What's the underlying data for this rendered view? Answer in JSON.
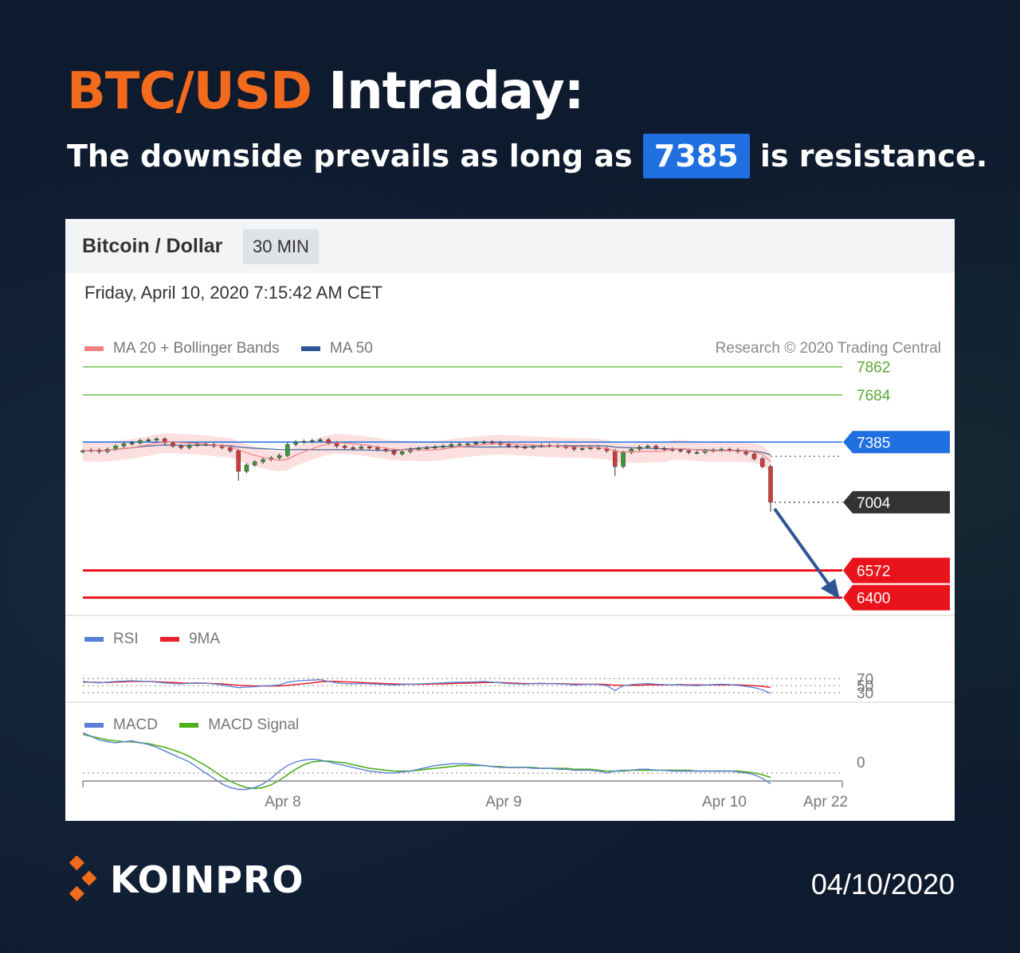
{
  "header": {
    "title_accent": "BTC/USD",
    "title_rest": "Intraday:",
    "subtitle_before": "The downside prevails as long as",
    "subtitle_highlight": "7385",
    "subtitle_after": "is resistance."
  },
  "colors": {
    "background": "#0e1a2e",
    "accent_orange": "#f26a1b",
    "highlight_blue": "#1f6fe0"
  },
  "card": {
    "instrument": "Bitcoin / Dollar",
    "timeframe": "30 MIN",
    "datetime": "Friday, April 10, 2020 7:15:42 AM CET",
    "credit": "Research © 2020 Trading Central"
  },
  "legends": {
    "main": [
      {
        "label": "MA 20 + Bollinger Bands",
        "color": "#f08080"
      },
      {
        "label": "MA 50",
        "color": "#2f5597"
      }
    ],
    "rsi": [
      {
        "label": "RSI",
        "color": "#5b7fd6"
      },
      {
        "label": "9MA",
        "color": "#e8212a"
      }
    ],
    "macd": [
      {
        "label": "MACD",
        "color": "#5b7fd6"
      },
      {
        "label": "MACD Signal",
        "color": "#4caf1a"
      }
    ]
  },
  "chart_data": {
    "type": "line",
    "x_ticks": [
      "Apr 8",
      "Apr 9",
      "Apr 10",
      "Apr 22"
    ],
    "levels": [
      {
        "value": 7862,
        "label": "7862",
        "kind": "target",
        "color": "#6cc04a"
      },
      {
        "value": 7684,
        "label": "7684",
        "kind": "target",
        "color": "#6cc04a"
      },
      {
        "value": 7385,
        "label": "7385",
        "kind": "pivot",
        "color": "#1f6fe0"
      },
      {
        "value": 7004,
        "label": "7004",
        "kind": "last",
        "color": "#333333"
      },
      {
        "value": 6572,
        "label": "6572",
        "kind": "support",
        "color": "#e8131b"
      },
      {
        "value": 6400,
        "label": "6400",
        "kind": "support",
        "color": "#e8131b"
      }
    ],
    "price_close": [
      7330,
      7335,
      7325,
      7340,
      7360,
      7375,
      7380,
      7395,
      7400,
      7405,
      7380,
      7360,
      7350,
      7365,
      7375,
      7370,
      7360,
      7350,
      7330,
      7200,
      7240,
      7260,
      7275,
      7285,
      7300,
      7370,
      7385,
      7390,
      7395,
      7400,
      7380,
      7360,
      7350,
      7345,
      7355,
      7350,
      7340,
      7330,
      7310,
      7325,
      7340,
      7345,
      7350,
      7355,
      7360,
      7370,
      7372,
      7375,
      7380,
      7385,
      7380,
      7370,
      7360,
      7355,
      7350,
      7360,
      7365,
      7362,
      7358,
      7352,
      7340,
      7345,
      7350,
      7345,
      7330,
      7230,
      7320,
      7340,
      7355,
      7360,
      7345,
      7340,
      7335,
      7330,
      7320,
      7320,
      7330,
      7335,
      7340,
      7335,
      7325,
      7310,
      7280,
      7230,
      7004
    ],
    "rsi": [
      62,
      60,
      58,
      60,
      62,
      63,
      64,
      63,
      62,
      60,
      58,
      56,
      55,
      57,
      58,
      57,
      55,
      52,
      48,
      44,
      46,
      47,
      49,
      50,
      52,
      60,
      63,
      65,
      66,
      67,
      62,
      58,
      56,
      55,
      56,
      55,
      54,
      53,
      52,
      53,
      54,
      55,
      56,
      57,
      58,
      59,
      60,
      60,
      61,
      62,
      60,
      58,
      56,
      55,
      54,
      56,
      57,
      56,
      55,
      54,
      52,
      53,
      54,
      53,
      50,
      36,
      50,
      53,
      55,
      56,
      54,
      53,
      52,
      52,
      51,
      50,
      52,
      53,
      54,
      53,
      51,
      48,
      44,
      38,
      28
    ],
    "rsi_ma": [
      60,
      60,
      59,
      59,
      60,
      61,
      62,
      62,
      62,
      61,
      60,
      59,
      58,
      57,
      57,
      57,
      56,
      55,
      53,
      51,
      50,
      49,
      49,
      49,
      49,
      51,
      53,
      56,
      58,
      61,
      62,
      62,
      61,
      60,
      59,
      58,
      57,
      56,
      55,
      54,
      54,
      54,
      54,
      55,
      55,
      56,
      57,
      57,
      58,
      59,
      59,
      59,
      58,
      57,
      56,
      56,
      56,
      56,
      56,
      55,
      54,
      54,
      54,
      54,
      53,
      51,
      51,
      51,
      51,
      52,
      52,
      52,
      52,
      53,
      52,
      52,
      52,
      52,
      52,
      52,
      52,
      51,
      50,
      48,
      45
    ],
    "rsi_levels": [
      70,
      50,
      30
    ],
    "macd": [
      32,
      28,
      24,
      22,
      21,
      22,
      23,
      21,
      19,
      16,
      12,
      8,
      4,
      0,
      -6,
      -12,
      -18,
      -24,
      -28,
      -30,
      -30,
      -28,
      -24,
      -18,
      -10,
      -4,
      0,
      2,
      3,
      2,
      0,
      -2,
      -4,
      -6,
      -8,
      -10,
      -11,
      -12,
      -12,
      -11,
      -10,
      -8,
      -6,
      -4,
      -3,
      -2,
      -2,
      -2,
      -3,
      -4,
      -5,
      -6,
      -6,
      -6,
      -6,
      -7,
      -7,
      -7,
      -8,
      -8,
      -9,
      -9,
      -9,
      -10,
      -12,
      -10,
      -9,
      -9,
      -8,
      -8,
      -9,
      -9,
      -10,
      -10,
      -10,
      -10,
      -10,
      -10,
      -10,
      -10,
      -11,
      -12,
      -14,
      -18,
      -24
    ],
    "macd_signal": [
      30,
      28,
      26,
      24,
      23,
      22,
      22,
      21,
      20,
      18,
      16,
      13,
      10,
      6,
      1,
      -4,
      -10,
      -16,
      -21,
      -25,
      -28,
      -29,
      -28,
      -25,
      -20,
      -14,
      -8,
      -3,
      0,
      1,
      1,
      0,
      -1,
      -3,
      -5,
      -7,
      -8,
      -9,
      -10,
      -10,
      -10,
      -9,
      -8,
      -7,
      -6,
      -5,
      -4,
      -4,
      -4,
      -4,
      -5,
      -5,
      -6,
      -6,
      -6,
      -6,
      -7,
      -7,
      -7,
      -7,
      -8,
      -8,
      -8,
      -9,
      -10,
      -10,
      -10,
      -9,
      -9,
      -9,
      -9,
      -9,
      -9,
      -9,
      -9,
      -10,
      -10,
      -10,
      -10,
      -10,
      -10,
      -11,
      -12,
      -14,
      -17
    ],
    "macd_zero_label": "0"
  },
  "footer": {
    "brand": "KOINPRO",
    "date": "04/10/2020"
  }
}
